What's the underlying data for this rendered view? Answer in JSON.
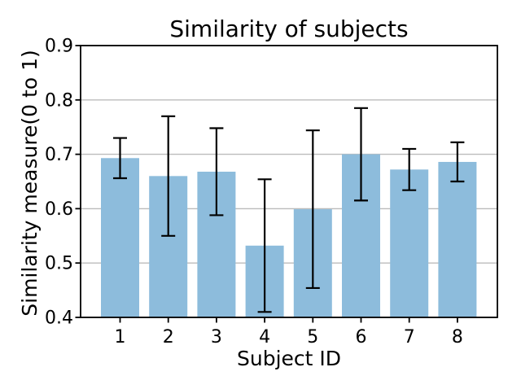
{
  "chart_data": {
    "type": "bar",
    "title": "Similarity of subjects",
    "xlabel": "Subject ID",
    "ylabel": "Similarity measure(0 to 1)",
    "categories": [
      "1",
      "2",
      "3",
      "4",
      "5",
      "6",
      "7",
      "8"
    ],
    "values": [
      0.693,
      0.66,
      0.668,
      0.532,
      0.599,
      0.7,
      0.672,
      0.686
    ],
    "errors": [
      0.037,
      0.11,
      0.08,
      0.122,
      0.145,
      0.085,
      0.038,
      0.036
    ],
    "ylim": [
      0.4,
      0.9
    ],
    "yticks": [
      0.4,
      0.5,
      0.6,
      0.7,
      0.8,
      0.9
    ],
    "grid": "horizontal",
    "legend": "none",
    "colors": {
      "bar": "#8dbcdc",
      "error": "#000000",
      "grid": "#bcbcbc",
      "spine": "#000000",
      "text": "#000000",
      "background": "#ffffff"
    }
  }
}
